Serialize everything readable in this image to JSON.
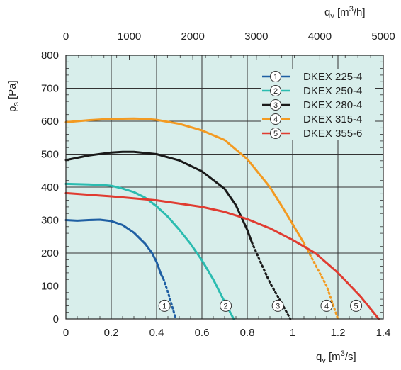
{
  "chart_data": {
    "type": "line",
    "x_unit": "q_v [m3/s]",
    "x2_unit": "q_v [m3/h]",
    "y_unit": "p_s [Pa]",
    "xlim": [
      0,
      1.4
    ],
    "ylim": [
      0,
      800
    ],
    "x2lim": [
      0,
      5000
    ],
    "x_ticks": [
      "0",
      "0.2",
      "0.4",
      "0.6",
      "0.8",
      "1",
      "1.2",
      "1.4"
    ],
    "x2_ticks": [
      "0",
      "1000",
      "2000",
      "3000",
      "4000",
      "5000"
    ],
    "y_ticks": [
      "0",
      "100",
      "200",
      "300",
      "400",
      "500",
      "600",
      "700",
      "800"
    ],
    "grid": true,
    "background_color": "#d8eeeb",
    "legend_position": "top-right",
    "series": [
      {
        "marker": "1",
        "name": "DKEX 225-4",
        "color": "#1f5fa3",
        "solid": [
          [
            0,
            300
          ],
          [
            0.05,
            298
          ],
          [
            0.1,
            300
          ],
          [
            0.15,
            301
          ],
          [
            0.2,
            297
          ],
          [
            0.25,
            285
          ],
          [
            0.3,
            262
          ],
          [
            0.35,
            228
          ],
          [
            0.38,
            200
          ],
          [
            0.4,
            173
          ],
          [
            0.42,
            135
          ],
          [
            0.43,
            122
          ]
        ],
        "dotted": [
          [
            0.43,
            122
          ],
          [
            0.45,
            82
          ],
          [
            0.47,
            35
          ],
          [
            0.485,
            0
          ]
        ],
        "label_at": [
          0.435,
          40
        ]
      },
      {
        "marker": "2",
        "name": "DKEX 250-4",
        "color": "#2bbcb0",
        "solid": [
          [
            0,
            410
          ],
          [
            0.1,
            408
          ],
          [
            0.15,
            407
          ],
          [
            0.2,
            404
          ],
          [
            0.25,
            396
          ],
          [
            0.3,
            385
          ],
          [
            0.35,
            368
          ],
          [
            0.4,
            342
          ],
          [
            0.45,
            310
          ],
          [
            0.5,
            271
          ],
          [
            0.55,
            228
          ],
          [
            0.6,
            178
          ],
          [
            0.65,
            120
          ],
          [
            0.7,
            52
          ],
          [
            0.74,
            0
          ]
        ],
        "dotted": [],
        "label_at": [
          0.705,
          40
        ]
      },
      {
        "marker": "3",
        "name": "DKEX 280-4",
        "color": "#1a1a1a",
        "solid": [
          [
            0,
            482
          ],
          [
            0.1,
            496
          ],
          [
            0.2,
            505
          ],
          [
            0.25,
            507
          ],
          [
            0.3,
            507
          ],
          [
            0.4,
            500
          ],
          [
            0.5,
            481
          ],
          [
            0.6,
            448
          ],
          [
            0.7,
            395
          ],
          [
            0.75,
            345
          ],
          [
            0.8,
            270
          ],
          [
            0.82,
            233
          ]
        ],
        "dotted": [
          [
            0.82,
            233
          ],
          [
            0.86,
            170
          ],
          [
            0.9,
            110
          ],
          [
            0.95,
            50
          ],
          [
            0.99,
            0
          ]
        ],
        "label_at": [
          0.935,
          40
        ]
      },
      {
        "marker": "4",
        "name": "DKEX 315-4",
        "color": "#f39a21",
        "solid": [
          [
            0,
            597
          ],
          [
            0.1,
            603
          ],
          [
            0.2,
            607
          ],
          [
            0.3,
            608
          ],
          [
            0.35,
            607
          ],
          [
            0.4,
            604
          ],
          [
            0.5,
            592
          ],
          [
            0.6,
            572
          ],
          [
            0.7,
            543
          ],
          [
            0.8,
            485
          ],
          [
            0.9,
            400
          ],
          [
            0.95,
            345
          ],
          [
            1.0,
            288
          ],
          [
            1.05,
            230
          ]
        ],
        "dotted": [
          [
            1.05,
            230
          ],
          [
            1.1,
            165
          ],
          [
            1.15,
            100
          ],
          [
            1.2,
            0
          ]
        ],
        "label_at": [
          1.15,
          40
        ]
      },
      {
        "marker": "5",
        "name": "DKEX 355-6",
        "color": "#e03c31",
        "solid": [
          [
            0,
            382
          ],
          [
            0.2,
            372
          ],
          [
            0.4,
            360
          ],
          [
            0.6,
            340
          ],
          [
            0.7,
            325
          ],
          [
            0.8,
            303
          ],
          [
            0.9,
            275
          ],
          [
            1.0,
            240
          ],
          [
            1.1,
            200
          ],
          [
            1.2,
            140
          ],
          [
            1.3,
            68
          ],
          [
            1.38,
            0
          ]
        ],
        "dotted": [],
        "label_at": [
          1.28,
          40
        ]
      }
    ]
  }
}
